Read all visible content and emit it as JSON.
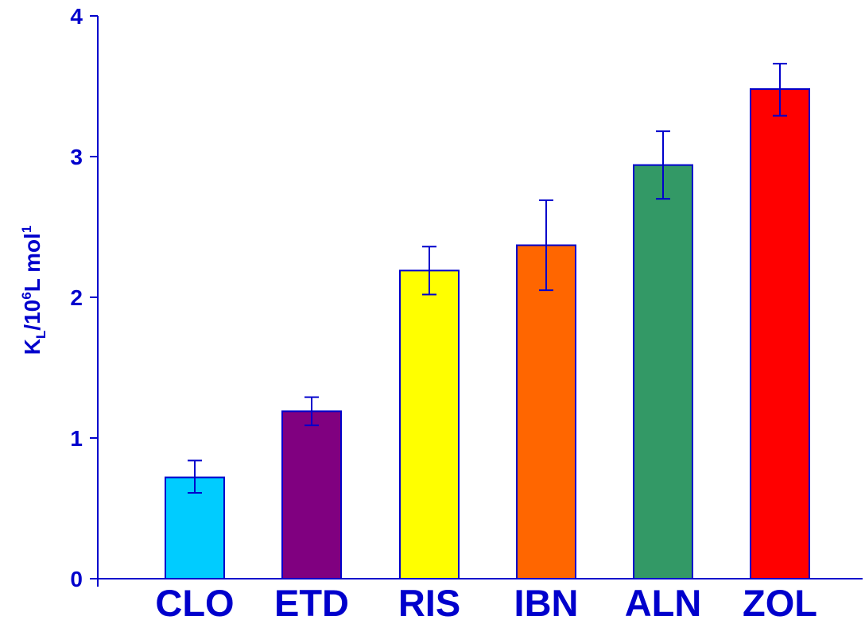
{
  "chart_data": {
    "type": "bar",
    "title": "",
    "xlabel": "",
    "ylabel": {
      "base": "K",
      "subscript": "L",
      "middle": "/10",
      "superscript": "6",
      "unit": "L mol",
      "unit_superscript": "1"
    },
    "ylim": [
      0,
      4
    ],
    "yticks": [
      "0",
      "1",
      "2",
      "3",
      "4"
    ],
    "categories": [
      "CLO",
      "ETD",
      "RIS",
      "IBN",
      "ALN",
      "ZOL"
    ],
    "values": [
      0.72,
      1.19,
      2.19,
      2.37,
      2.94,
      3.48
    ],
    "error_low": [
      0.61,
      1.09,
      2.02,
      2.05,
      2.7,
      3.29
    ],
    "error_high": [
      0.84,
      1.29,
      2.36,
      2.69,
      3.18,
      3.66
    ],
    "bar_colors": [
      "#00ccff",
      "#800080",
      "#ffff00",
      "#ff6600",
      "#339966",
      "#ff0000"
    ],
    "axis_color": "#0000cc",
    "grid": false,
    "legend": "none"
  }
}
